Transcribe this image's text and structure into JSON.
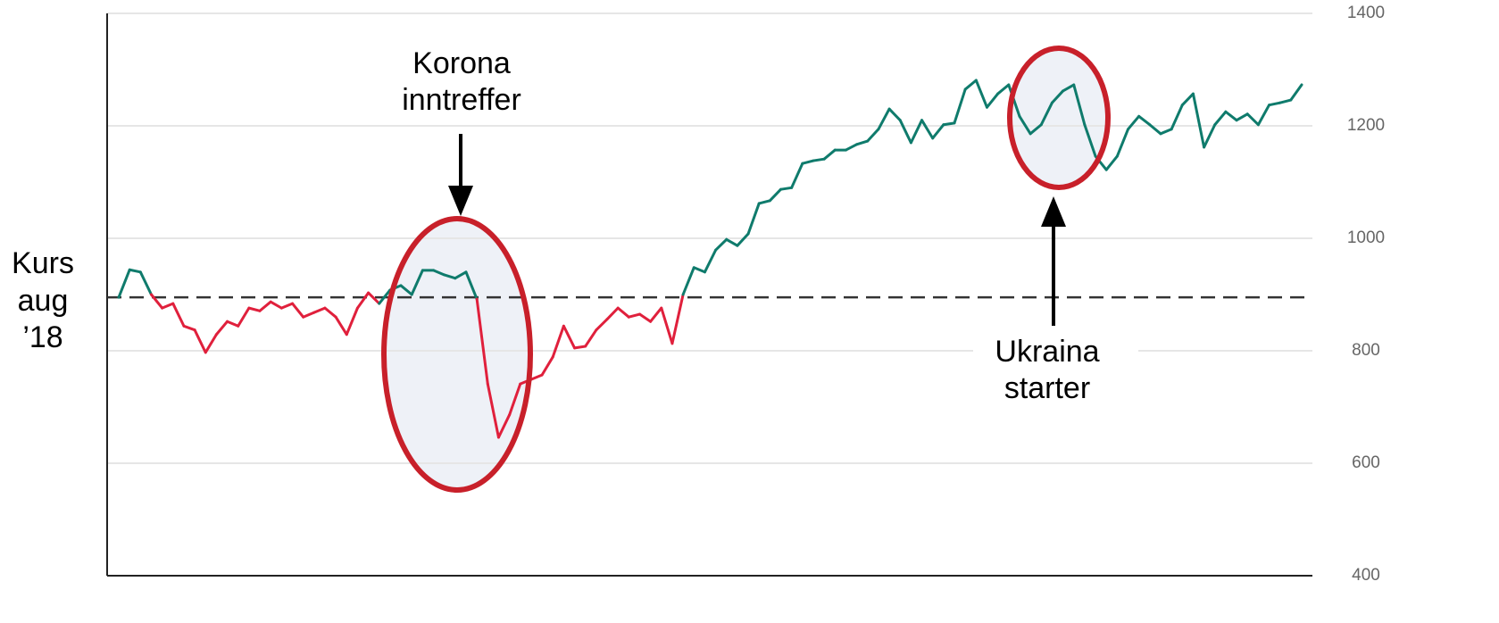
{
  "chart_data": {
    "type": "line",
    "ylim": [
      400,
      1400
    ],
    "yticks": [
      400,
      600,
      800,
      1000,
      1200,
      1400
    ],
    "grid": true,
    "reference": 895,
    "reference_label": [
      "Kurs",
      "aug",
      "’18"
    ],
    "color_above": "#0f7b6c",
    "color_below": "#e0203c",
    "annotations": [
      [
        "Korona",
        "inntreffer"
      ],
      [
        "Ukraina",
        "starter"
      ]
    ],
    "values": [
      895,
      944,
      940,
      900,
      876,
      884,
      844,
      837,
      797,
      829,
      852,
      844,
      876,
      871,
      887,
      876,
      884,
      860,
      868,
      876,
      860,
      829,
      876,
      903,
      884,
      908,
      916,
      900,
      943,
      943,
      935,
      929,
      940,
      892,
      741,
      646,
      686,
      741,
      749,
      757,
      789,
      844,
      805,
      808,
      837,
      856,
      876,
      860,
      865,
      852,
      876,
      813,
      900,
      948,
      940,
      979,
      998,
      987,
      1008,
      1062,
      1067,
      1087,
      1090,
      1133,
      1138,
      1141,
      1157,
      1157,
      1167,
      1173,
      1194,
      1230,
      1210,
      1170,
      1210,
      1178,
      1202,
      1205,
      1265,
      1281,
      1233,
      1257,
      1273,
      1217,
      1186,
      1202,
      1241,
      1262,
      1273,
      1202,
      1146,
      1122,
      1146,
      1194,
      1217,
      1202,
      1186,
      1194,
      1237,
      1257,
      1162,
      1202,
      1225,
      1210,
      1221,
      1202,
      1237,
      1241,
      1246,
      1273
    ]
  }
}
